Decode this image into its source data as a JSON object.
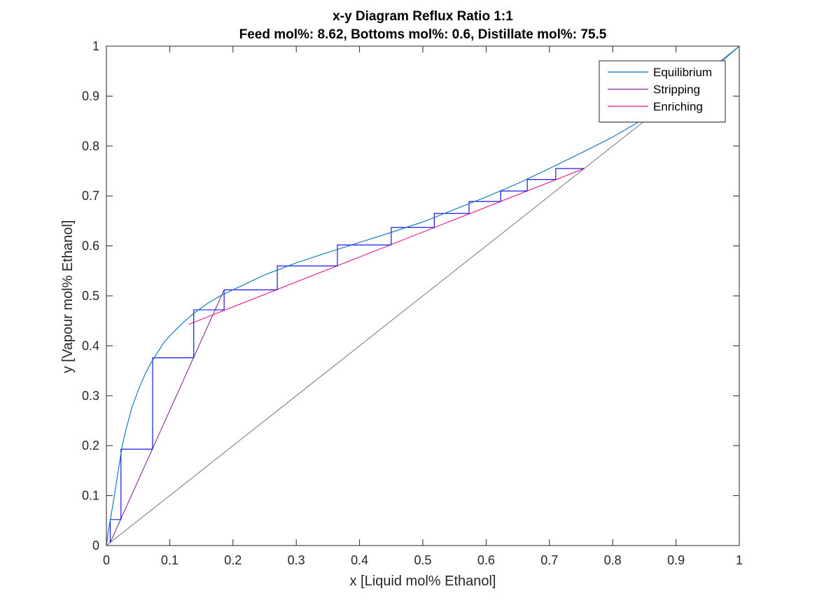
{
  "chart_data": {
    "type": "line",
    "title": "x-y Diagram Reflux Ratio 1:1",
    "subtitle": "Feed mol%: 8.62, Bottoms mol%: 0.6, Distillate mol%: 75.5",
    "xlabel": "x [Liquid mol% Ethanol]",
    "ylabel": "y [Vapour mol% Ethanol]",
    "xlim": [
      0,
      1
    ],
    "ylim": [
      0,
      1
    ],
    "xticks": [
      "0",
      "0.1",
      "0.2",
      "0.3",
      "0.4",
      "0.5",
      "0.6",
      "0.7",
      "0.8",
      "0.9",
      "1"
    ],
    "yticks": [
      "0",
      "0.1",
      "0.2",
      "0.3",
      "0.4",
      "0.5",
      "0.6",
      "0.7",
      "0.8",
      "0.9",
      "1"
    ],
    "grid": false,
    "legend_position": "top-right",
    "series": [
      {
        "name": "Equilibrium",
        "color": "#0072BD",
        "x": [
          0,
          0.003,
          0.006,
          0.01,
          0.015,
          0.02,
          0.025,
          0.03,
          0.04,
          0.05,
          0.06,
          0.07,
          0.08,
          0.09,
          0.1,
          0.12,
          0.14,
          0.16,
          0.18,
          0.2,
          0.22,
          0.25,
          0.3,
          0.35,
          0.4,
          0.45,
          0.5,
          0.55,
          0.6,
          0.65,
          0.7,
          0.75,
          0.8,
          0.85,
          0.9,
          0.95,
          1.0
        ],
        "y": [
          0,
          0.03,
          0.05,
          0.08,
          0.12,
          0.16,
          0.2,
          0.228,
          0.275,
          0.31,
          0.34,
          0.365,
          0.385,
          0.405,
          0.42,
          0.445,
          0.467,
          0.485,
          0.5,
          0.512,
          0.524,
          0.542,
          0.566,
          0.587,
          0.607,
          0.627,
          0.648,
          0.673,
          0.698,
          0.725,
          0.755,
          0.786,
          0.818,
          0.855,
          0.895,
          0.945,
          1.0
        ]
      },
      {
        "name": "Stripping",
        "color": "#7E2F8E",
        "x": [
          0.006,
          0.186
        ],
        "y": [
          0.006,
          0.512
        ]
      },
      {
        "name": "Enriching",
        "color": "#E8178F",
        "x": [
          0.13,
          0.755
        ],
        "y": [
          0.443,
          0.755
        ]
      },
      {
        "name": "",
        "color": "#808080",
        "x": [
          0,
          1
        ],
        "y": [
          0,
          1
        ]
      },
      {
        "name": "",
        "color": "#0000E6",
        "x": [
          0.006,
          0.006,
          0.023,
          0.023,
          0.073,
          0.073,
          0.138,
          0.138,
          0.186,
          0.186,
          0.27,
          0.27,
          0.365,
          0.365,
          0.45,
          0.45,
          0.518,
          0.518,
          0.573,
          0.573,
          0.623,
          0.623,
          0.665,
          0.665,
          0.71,
          0.71,
          0.755
        ],
        "y": [
          0.006,
          0.052,
          0.052,
          0.193,
          0.193,
          0.376,
          0.376,
          0.472,
          0.472,
          0.512,
          0.512,
          0.56,
          0.56,
          0.602,
          0.602,
          0.637,
          0.637,
          0.665,
          0.665,
          0.689,
          0.689,
          0.71,
          0.71,
          0.733,
          0.733,
          0.755,
          0.755
        ]
      }
    ]
  }
}
